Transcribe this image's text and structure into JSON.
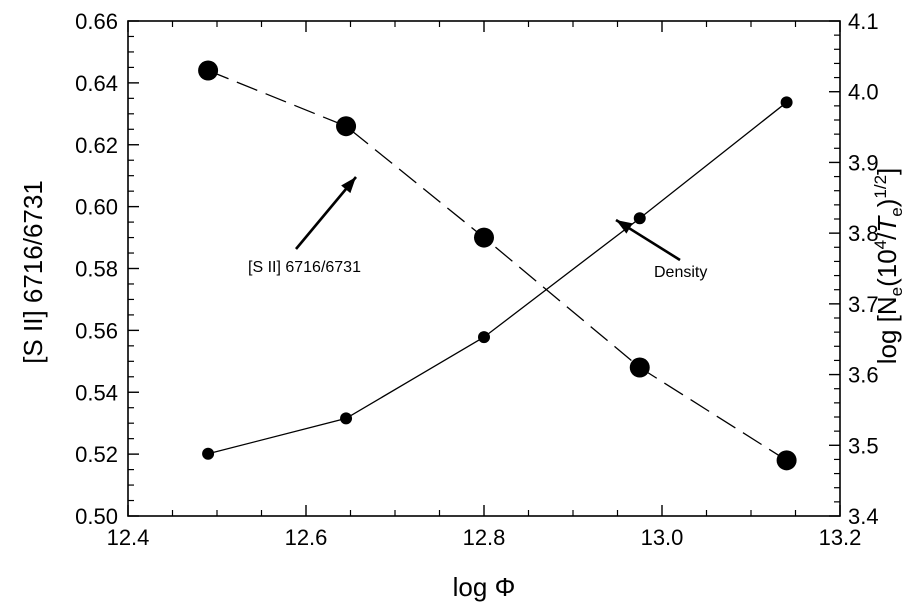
{
  "chart_data": {
    "type": "line",
    "xlabel": "log Φ",
    "ylabel_left": "[S II] 6716/6731",
    "ylabel_right": {
      "prefix": "log [N",
      "sub1": "e",
      "mid1": "(10",
      "sup1": "4",
      "mid2": "/",
      "italic": "T",
      "sub2": "e",
      "mid3": ")",
      "sup2": "1/2",
      "suffix": "]"
    },
    "xlim": [
      12.4,
      13.2
    ],
    "ylim_left": [
      0.5,
      0.66
    ],
    "ylim_right": [
      3.4,
      4.1
    ],
    "x_ticks": [
      "12.4",
      "12.6",
      "12.8",
      "13.0",
      "13.2"
    ],
    "y_left_ticks": [
      "0.50",
      "0.52",
      "0.54",
      "0.56",
      "0.58",
      "0.60",
      "0.62",
      "0.64",
      "0.66"
    ],
    "y_right_ticks": [
      "3.4",
      "3.5",
      "3.6",
      "3.7",
      "3.8",
      "3.9",
      "4.0",
      "4.1"
    ],
    "grid": false,
    "series": [
      {
        "name": "[S II] 6716/6731",
        "axis": "left",
        "line": "dashed",
        "marker": "large",
        "x": [
          12.49,
          12.645,
          12.8,
          12.975,
          13.14
        ],
        "y": [
          0.644,
          0.626,
          0.59,
          0.548,
          0.518
        ]
      },
      {
        "name": "Density",
        "axis": "right",
        "line": "solid",
        "marker": "small",
        "x": [
          12.49,
          12.645,
          12.8,
          12.975,
          13.14
        ],
        "y": [
          3.488,
          3.538,
          3.653,
          3.821,
          3.985
        ]
      }
    ],
    "annotations": [
      {
        "text": "[S II] 6716/6731",
        "series": "[S II] 6716/6731"
      },
      {
        "text": "Density",
        "series": "Density"
      }
    ],
    "colors": {
      "ink": "#000000",
      "background": "#ffffff"
    }
  }
}
